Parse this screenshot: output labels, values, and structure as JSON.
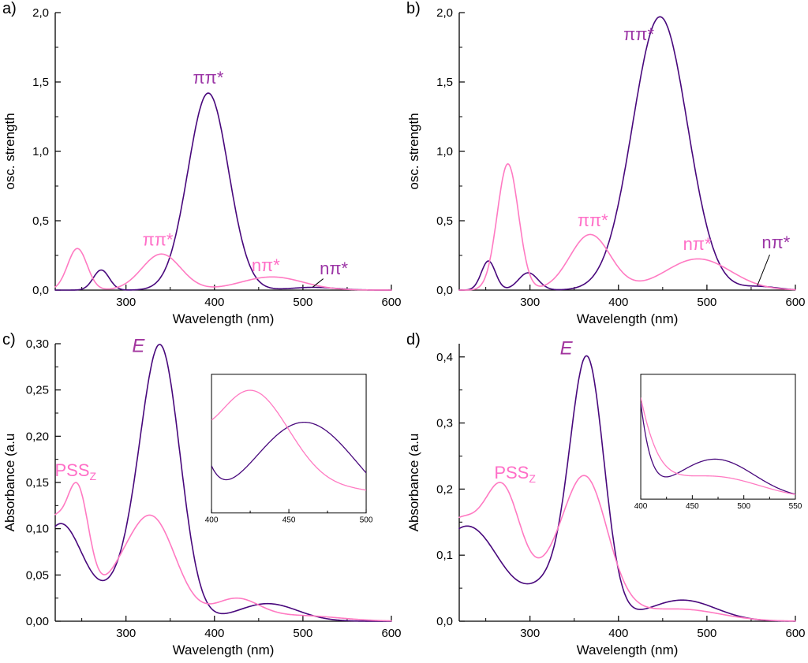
{
  "figure": {
    "description_colors": {
      "purple_curve": "#48087c",
      "pink_curve": "#ff7ac2",
      "purple_label": "#9c36a6",
      "pink_label": "#ff6ec7",
      "E_label": "#a2359e"
    }
  },
  "chart_data": [
    {
      "panel_label": "a)",
      "type": "line",
      "xlabel": "Wavelength (nm)",
      "ylabel": "osc. strength",
      "xlim": [
        220,
        600
      ],
      "ylim": [
        0,
        2.0
      ],
      "xticks": {
        "major": [
          300,
          400,
          500,
          600
        ],
        "labels": [
          "300",
          "400",
          "500",
          "600"
        ],
        "minor": [
          250,
          350,
          450,
          550
        ]
      },
      "yticks": {
        "major": [
          0,
          0.5,
          1.0,
          1.5,
          2.0
        ],
        "labels": [
          "0,0",
          "0,5",
          "1,0",
          "1,5",
          "2,0"
        ],
        "minor": [
          0.25,
          0.75,
          1.25,
          1.75
        ]
      },
      "series": [
        {
          "id": "E",
          "color": "#48087c",
          "peaks": [
            {
              "c": 272,
              "h": 0.145,
              "s": 9
            },
            {
              "c": 393,
              "h": 1.42,
              "s": 23
            },
            {
              "c": 512,
              "h": 0.02,
              "s": 26
            }
          ]
        },
        {
          "id": "Z",
          "color": "#ff7ac2",
          "peaks": [
            {
              "c": 245,
              "h": 0.3,
              "s": 11
            },
            {
              "c": 340,
              "h": 0.26,
              "s": 22
            },
            {
              "c": 465,
              "h": 0.095,
              "s": 35
            }
          ]
        }
      ],
      "annotations": [
        {
          "text": "ππ*",
          "x": 393,
          "y": 1.49,
          "color": "#9c36a6",
          "size": 22
        },
        {
          "text": "ππ*",
          "x": 336,
          "y": 0.32,
          "color": "#ff6ec7",
          "size": 22
        },
        {
          "text": "nπ*",
          "x": 458,
          "y": 0.135,
          "color": "#ff6ec7",
          "size": 22
        },
        {
          "text": "nπ*",
          "x": 535,
          "y": 0.115,
          "color": "#9c36a6",
          "size": 22,
          "line": {
            "x1": 523,
            "y1": 0.082,
            "x2": 511,
            "y2": 0.021
          }
        }
      ]
    },
    {
      "panel_label": "b)",
      "type": "line",
      "xlabel": "Wavelength (nm)",
      "ylabel": "osc. strength",
      "xlim": [
        220,
        600
      ],
      "ylim": [
        0,
        2.0
      ],
      "xticks": {
        "major": [
          300,
          400,
          500,
          600
        ],
        "labels": [
          "300",
          "400",
          "500",
          "600"
        ],
        "minor": [
          250,
          350,
          450,
          550
        ]
      },
      "yticks": {
        "major": [
          0,
          0.5,
          1.0,
          1.5,
          2.0
        ],
        "labels": [
          "0,0",
          "0,5",
          "1,0",
          "1,5",
          "2,0"
        ],
        "minor": [
          0.25,
          0.75,
          1.25,
          1.75
        ]
      },
      "series": [
        {
          "id": "E",
          "color": "#48087c",
          "peaks": [
            {
              "c": 253,
              "h": 0.21,
              "s": 8
            },
            {
              "c": 298,
              "h": 0.125,
              "s": 11
            },
            {
              "c": 447,
              "h": 1.97,
              "s": 31
            },
            {
              "c": 560,
              "h": 0.025,
              "s": 20
            }
          ]
        },
        {
          "id": "Z",
          "color": "#ff7ac2",
          "peaks": [
            {
              "c": 275,
              "h": 0.91,
              "s": 12
            },
            {
              "c": 368,
              "h": 0.4,
              "s": 23
            },
            {
              "c": 490,
              "h": 0.225,
              "s": 37
            }
          ]
        }
      ],
      "annotations": [
        {
          "text": "ππ*",
          "x": 423,
          "y": 1.8,
          "color": "#9c36a6",
          "size": 22
        },
        {
          "text": "ππ*",
          "x": 371,
          "y": 0.46,
          "color": "#ff6ec7",
          "size": 22
        },
        {
          "text": "nπ*",
          "x": 489,
          "y": 0.29,
          "color": "#ff6ec7",
          "size": 22
        },
        {
          "text": "nπ*",
          "x": 578,
          "y": 0.3,
          "color": "#9c36a6",
          "size": 22,
          "line": {
            "x1": 571,
            "y1": 0.255,
            "x2": 557,
            "y2": 0.032
          }
        }
      ]
    },
    {
      "panel_label": "c)",
      "type": "line",
      "xlabel": "Wavelength (nm)",
      "ylabel": "Absorbance (a.u",
      "xlim": [
        220,
        600
      ],
      "ylim": [
        0,
        0.3
      ],
      "xticks": {
        "major": [
          300,
          400,
          500,
          600
        ],
        "labels": [
          "300",
          "400",
          "500",
          "600"
        ],
        "minor": [
          250,
          350,
          450,
          550
        ]
      },
      "yticks": {
        "major": [
          0,
          0.05,
          0.1,
          0.15,
          0.2,
          0.25,
          0.3
        ],
        "labels": [
          "0,00",
          "0,05",
          "0,10",
          "0,15",
          "0,20",
          "0,25",
          "0,30"
        ],
        "minor": [
          0.025,
          0.075,
          0.125,
          0.175,
          0.225,
          0.275
        ]
      },
      "series": [
        {
          "id": "E",
          "color": "#48087c",
          "peaks": [
            {
              "c": 226,
              "h": 0.105,
              "s": 26
            },
            {
              "c": 310,
              "h": 0.05,
              "s": 28
            },
            {
              "c": 340,
              "h": 0.27,
              "s": 22
            },
            {
              "c": 460,
              "h": 0.019,
              "s": 34
            }
          ]
        },
        {
          "id": "Z",
          "color": "#ff7ac2",
          "peaks": [
            {
              "c": 215,
              "h": 0.1,
              "s": 14
            },
            {
              "c": 245,
              "h": 0.13,
              "s": 13
            },
            {
              "c": 285,
              "h": 0.03,
              "s": 25
            },
            {
              "c": 330,
              "h": 0.108,
              "s": 27
            },
            {
              "c": 424,
              "h": 0.023,
              "s": 26
            },
            {
              "c": 495,
              "h": 0.006,
              "s": 45
            }
          ]
        }
      ],
      "annotations": [
        {
          "text": "E",
          "x": 314,
          "y": 0.291,
          "color": "#a2359e",
          "size": 24,
          "italic": true
        },
        {
          "text": "PSS",
          "sub": "Z",
          "x": 243,
          "y": 0.157,
          "color": "#ff6ec7",
          "size": 22
        }
      ],
      "inset": {
        "pos": {
          "x0": 0.465,
          "y0": 0.11,
          "w": 0.46,
          "h": 0.5
        },
        "xlim": [
          400,
          500
        ],
        "ylim": [
          0.002,
          0.028
        ],
        "xticks": {
          "major": [
            400,
            450,
            500
          ],
          "labels": [
            "400",
            "450",
            "500"
          ],
          "minor": [
            425,
            475
          ]
        }
      }
    },
    {
      "panel_label": "d)",
      "type": "line",
      "xlabel": "Wavelength (nm)",
      "ylabel": "Absorbance (a.u",
      "xlim": [
        220,
        600
      ],
      "ylim": [
        0,
        0.42
      ],
      "xticks": {
        "major": [
          300,
          400,
          500,
          600
        ],
        "labels": [
          "300",
          "400",
          "500",
          "600"
        ],
        "minor": [
          250,
          350,
          450,
          550
        ]
      },
      "yticks": {
        "major": [
          0,
          0.1,
          0.2,
          0.3,
          0.4
        ],
        "labels": [
          "0,0",
          "0,1",
          "0,2",
          "0,3",
          "0,4"
        ],
        "minor": [
          0.05,
          0.15,
          0.25,
          0.35
        ]
      },
      "series": [
        {
          "id": "E",
          "color": "#48087c",
          "peaks": [
            {
              "c": 218,
              "h": 0.11,
              "s": 35
            },
            {
              "c": 250,
              "h": 0.05,
              "s": 30
            },
            {
              "c": 330,
              "h": 0.06,
              "s": 30
            },
            {
              "c": 365,
              "h": 0.37,
              "s": 19
            },
            {
              "c": 472,
              "h": 0.032,
              "s": 38
            }
          ]
        },
        {
          "id": "Z",
          "color": "#ff7ac2",
          "peaks": [
            {
              "c": 218,
              "h": 0.15,
              "s": 30
            },
            {
              "c": 270,
              "h": 0.16,
              "s": 20
            },
            {
              "c": 345,
              "h": 0.1,
              "s": 38
            },
            {
              "c": 365,
              "h": 0.13,
              "s": 23
            },
            {
              "c": 470,
              "h": 0.018,
              "s": 45
            }
          ]
        }
      ],
      "annotations": [
        {
          "text": "E",
          "x": 341,
          "y": 0.404,
          "color": "#a2359e",
          "size": 24,
          "italic": true
        },
        {
          "text": "PSS",
          "sub": "Z",
          "x": 283,
          "y": 0.216,
          "color": "#ff6ec7",
          "size": 22
        }
      ],
      "inset": {
        "pos": {
          "x0": 0.54,
          "y0": 0.11,
          "w": 0.46,
          "h": 0.45
        },
        "xlim": [
          400,
          550
        ],
        "ylim": [
          0,
          0.1
        ],
        "xticks": {
          "major": [
            400,
            450,
            500,
            550
          ],
          "labels": [
            "400",
            "450",
            "500",
            "550"
          ],
          "minor": [
            425,
            475,
            525
          ]
        }
      }
    }
  ]
}
